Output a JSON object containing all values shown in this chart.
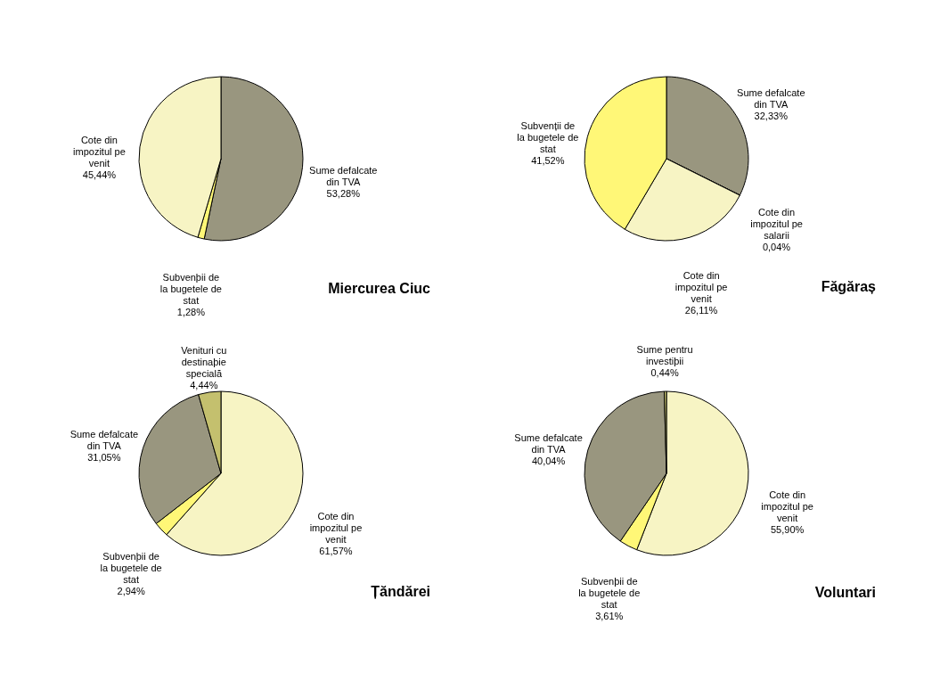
{
  "chart_data": [
    {
      "type": "pie",
      "title": "Miercurea Ciuc",
      "categories": [
        "Sume defalcate din TVA",
        "Subvenþii de la bugetele de stat",
        "Cote din impozitul pe venit"
      ],
      "values": [
        53.28,
        1.28,
        45.44
      ],
      "colors": [
        "#99967f",
        "#fff777",
        "#f7f4c4"
      ],
      "value_labels": [
        "53,28%",
        "1,28%",
        "45,44%"
      ]
    },
    {
      "type": "pie",
      "title": "Făgăraș",
      "categories": [
        "Sume defalcate din TVA",
        "Cote din impozitul pe salarii",
        "Cote din impozitul pe venit",
        "Subvenții de la bugetele de stat"
      ],
      "values": [
        32.33,
        0.04,
        26.11,
        41.52
      ],
      "colors": [
        "#99967f",
        "#c4c06e",
        "#f7f4c4",
        "#fff777"
      ],
      "value_labels": [
        "32,33%",
        "0,04%",
        "26,11%",
        "41,52%"
      ]
    },
    {
      "type": "pie",
      "title": "Țăndărei",
      "categories": [
        "Cote din impozitul pe venit",
        "Subvenþii de la bugetele de stat",
        "Sume defalcate din TVA",
        "Venituri cu destinaþie specială"
      ],
      "values": [
        61.57,
        2.94,
        31.05,
        4.44
      ],
      "colors": [
        "#f7f4c4",
        "#fff777",
        "#99967f",
        "#c4c06e"
      ],
      "value_labels": [
        "61,57%",
        "2,94%",
        "31,05%",
        "4,44%"
      ]
    },
    {
      "type": "pie",
      "title": "Voluntari",
      "categories": [
        "Cote din impozitul pe venit",
        "Subvenþii de la bugetele de stat",
        "Sume defalcate din TVA",
        "Sume pentru investiþii"
      ],
      "values": [
        55.9,
        3.61,
        40.04,
        0.44
      ],
      "colors": [
        "#f7f4c4",
        "#fff777",
        "#99967f",
        "#c4c06e"
      ],
      "value_labels": [
        "55,90%",
        "3,61%",
        "40,04%",
        "0,44%"
      ]
    }
  ]
}
